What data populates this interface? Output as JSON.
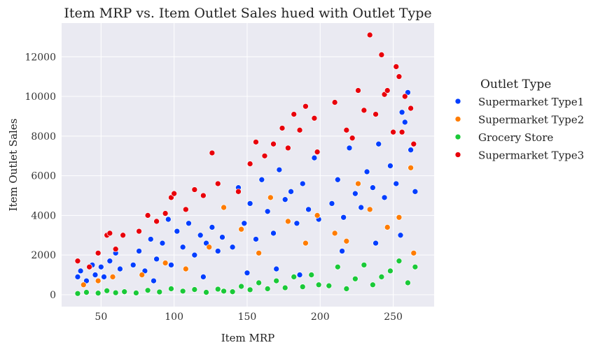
{
  "chart_data": {
    "type": "scatter",
    "title": "Item MRP vs. Item Outlet Sales hued with Outlet Type",
    "xlabel": "Item MRP",
    "ylabel": "Item Outlet Sales",
    "xlim": [
      23,
      278
    ],
    "ylim": [
      -600,
      13700
    ],
    "xticks": [
      50,
      100,
      150,
      200,
      250
    ],
    "yticks": [
      0,
      2000,
      4000,
      6000,
      8000,
      10000,
      12000
    ],
    "grid": true,
    "legend": {
      "title": "Outlet Type",
      "placement": "right"
    },
    "series": [
      {
        "name": "Supermarket Type1",
        "color": "#023eff",
        "points": [
          [
            34,
            900
          ],
          [
            36,
            1200
          ],
          [
            40,
            700
          ],
          [
            44,
            1500
          ],
          [
            46,
            1000
          ],
          [
            50,
            1400
          ],
          [
            52,
            900
          ],
          [
            56,
            1700
          ],
          [
            60,
            2100
          ],
          [
            63,
            1300
          ],
          [
            72,
            1500
          ],
          [
            76,
            2200
          ],
          [
            80,
            1200
          ],
          [
            84,
            2800
          ],
          [
            88,
            1800
          ],
          [
            92,
            2600
          ],
          [
            96,
            3800
          ],
          [
            98,
            1500
          ],
          [
            102,
            3200
          ],
          [
            106,
            2400
          ],
          [
            110,
            3600
          ],
          [
            114,
            2000
          ],
          [
            118,
            3000
          ],
          [
            122,
            2600
          ],
          [
            126,
            3400
          ],
          [
            130,
            2200
          ],
          [
            133,
            2900
          ],
          [
            140,
            2400
          ],
          [
            144,
            5400
          ],
          [
            148,
            3600
          ],
          [
            152,
            4600
          ],
          [
            156,
            2800
          ],
          [
            160,
            5800
          ],
          [
            164,
            4200
          ],
          [
            168,
            3100
          ],
          [
            172,
            6300
          ],
          [
            176,
            4800
          ],
          [
            180,
            5200
          ],
          [
            184,
            3600
          ],
          [
            188,
            5600
          ],
          [
            192,
            4300
          ],
          [
            196,
            6900
          ],
          [
            199,
            3800
          ],
          [
            208,
            4600
          ],
          [
            212,
            5800
          ],
          [
            216,
            3900
          ],
          [
            220,
            7400
          ],
          [
            224,
            5100
          ],
          [
            228,
            4400
          ],
          [
            232,
            6200
          ],
          [
            236,
            5400
          ],
          [
            240,
            7600
          ],
          [
            244,
            4900
          ],
          [
            248,
            6500
          ],
          [
            252,
            5600
          ],
          [
            256,
            9200
          ],
          [
            258,
            8700
          ],
          [
            260,
            10200
          ],
          [
            262,
            7300
          ],
          [
            265,
            5200
          ],
          [
            86,
            700
          ],
          [
            120,
            900
          ],
          [
            150,
            1100
          ],
          [
            170,
            1300
          ],
          [
            186,
            1000
          ],
          [
            215,
            2200
          ],
          [
            238,
            2600
          ],
          [
            255,
            3000
          ]
        ]
      },
      {
        "name": "Supermarket Type2",
        "color": "#ff7c00",
        "points": [
          [
            38,
            500
          ],
          [
            48,
            700
          ],
          [
            58,
            900
          ],
          [
            78,
            1000
          ],
          [
            94,
            1600
          ],
          [
            108,
            1300
          ],
          [
            124,
            2400
          ],
          [
            134,
            4400
          ],
          [
            146,
            3300
          ],
          [
            158,
            2100
          ],
          [
            166,
            4900
          ],
          [
            178,
            3700
          ],
          [
            190,
            2600
          ],
          [
            198,
            4000
          ],
          [
            210,
            3100
          ],
          [
            218,
            2700
          ],
          [
            226,
            5600
          ],
          [
            234,
            4300
          ],
          [
            246,
            3400
          ],
          [
            254,
            3900
          ],
          [
            262,
            6400
          ],
          [
            264,
            2100
          ]
        ]
      },
      {
        "name": "Grocery Store",
        "color": "#1ac938",
        "points": [
          [
            34,
            60
          ],
          [
            40,
            120
          ],
          [
            48,
            80
          ],
          [
            54,
            200
          ],
          [
            60,
            100
          ],
          [
            66,
            150
          ],
          [
            74,
            90
          ],
          [
            82,
            220
          ],
          [
            90,
            140
          ],
          [
            98,
            300
          ],
          [
            106,
            180
          ],
          [
            114,
            260
          ],
          [
            122,
            120
          ],
          [
            130,
            280
          ],
          [
            134,
            180
          ],
          [
            140,
            150
          ],
          [
            146,
            420
          ],
          [
            152,
            250
          ],
          [
            158,
            600
          ],
          [
            164,
            300
          ],
          [
            170,
            700
          ],
          [
            176,
            350
          ],
          [
            182,
            900
          ],
          [
            188,
            400
          ],
          [
            194,
            1000
          ],
          [
            199,
            500
          ],
          [
            206,
            450
          ],
          [
            212,
            1400
          ],
          [
            218,
            300
          ],
          [
            224,
            800
          ],
          [
            230,
            1500
          ],
          [
            236,
            500
          ],
          [
            242,
            900
          ],
          [
            248,
            1200
          ],
          [
            254,
            1700
          ],
          [
            260,
            600
          ],
          [
            265,
            1400
          ]
        ]
      },
      {
        "name": "Supermarket Type3",
        "color": "#e8000b",
        "points": [
          [
            34,
            1700
          ],
          [
            42,
            1400
          ],
          [
            48,
            2100
          ],
          [
            54,
            3000
          ],
          [
            56,
            3100
          ],
          [
            60,
            2300
          ],
          [
            65,
            3000
          ],
          [
            76,
            3200
          ],
          [
            82,
            4000
          ],
          [
            88,
            3700
          ],
          [
            94,
            4100
          ],
          [
            98,
            4900
          ],
          [
            100,
            5100
          ],
          [
            108,
            4300
          ],
          [
            114,
            5300
          ],
          [
            120,
            5000
          ],
          [
            126,
            7150
          ],
          [
            130,
            5600
          ],
          [
            144,
            5200
          ],
          [
            152,
            6600
          ],
          [
            156,
            7700
          ],
          [
            162,
            7000
          ],
          [
            168,
            7600
          ],
          [
            174,
            8400
          ],
          [
            178,
            7400
          ],
          [
            182,
            9100
          ],
          [
            186,
            8300
          ],
          [
            190,
            9500
          ],
          [
            196,
            8900
          ],
          [
            198,
            7200
          ],
          [
            210,
            9700
          ],
          [
            218,
            8300
          ],
          [
            222,
            7900
          ],
          [
            226,
            10300
          ],
          [
            230,
            9300
          ],
          [
            234,
            13100
          ],
          [
            238,
            9100
          ],
          [
            242,
            12100
          ],
          [
            244,
            10100
          ],
          [
            246,
            10300
          ],
          [
            250,
            8200
          ],
          [
            252,
            11500
          ],
          [
            254,
            11000
          ],
          [
            256,
            8200
          ],
          [
            258,
            10000
          ],
          [
            262,
            9400
          ],
          [
            264,
            7600
          ]
        ]
      }
    ]
  }
}
